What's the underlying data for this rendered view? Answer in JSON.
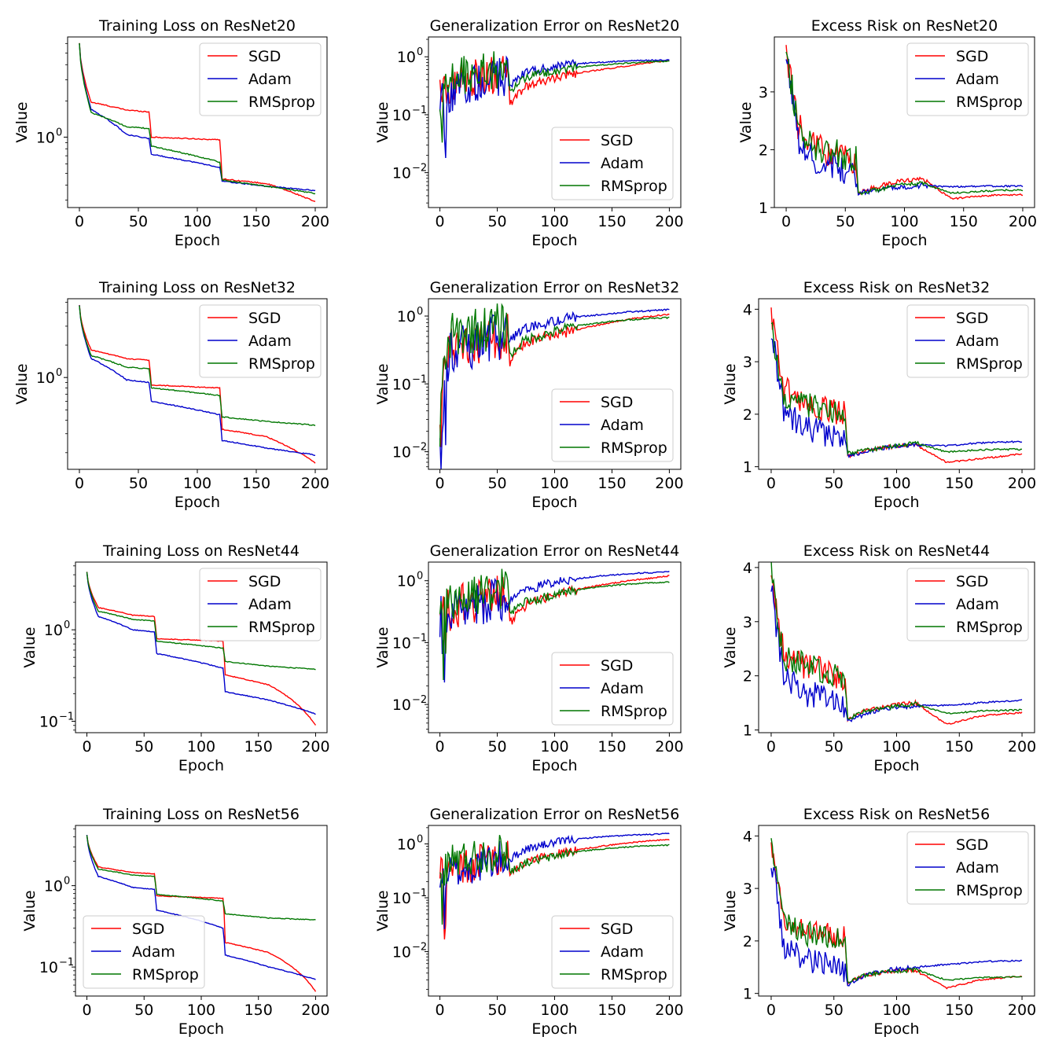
{
  "figure": {
    "rows": [
      "ResNet20",
      "ResNet32",
      "ResNet44",
      "ResNet56"
    ],
    "columns": [
      "Training Loss",
      "Generalization Error",
      "Excess Risk"
    ],
    "colors": {
      "SGD": "#ff0000",
      "Adam": "#0000cc",
      "RMSprop": "#007700"
    }
  },
  "chart_data": [
    {
      "type": "line",
      "model": "ResNet20",
      "metric": "loss",
      "title": "Training Loss on ResNet20",
      "xlabel": "Epoch",
      "ylabel": "Value",
      "yscale": "log",
      "ylim": [
        0.26,
        6.8
      ],
      "xlim": [
        -10,
        210
      ],
      "xticks": [
        0,
        50,
        100,
        150,
        200
      ],
      "yticks": [
        {
          "v": 1,
          "label": "10",
          "exp": "0"
        }
      ],
      "legend": "upper right",
      "series": [
        {
          "name": "SGD",
          "values": [
            6.0,
            1.95,
            1.68,
            1.62,
            1.0,
            0.95,
            0.45,
            0.41,
            0.29
          ]
        },
        {
          "name": "Adam",
          "values": [
            6.0,
            1.7,
            1.05,
            0.97,
            0.72,
            0.56,
            0.43,
            0.39,
            0.36
          ]
        },
        {
          "name": "RMSprop",
          "values": [
            6.0,
            1.6,
            1.22,
            1.18,
            0.84,
            0.62,
            0.44,
            0.39,
            0.34
          ]
        }
      ]
    },
    {
      "type": "line",
      "model": "ResNet20",
      "metric": "gen",
      "title": "Generalization Error on ResNet20",
      "xlabel": "Epoch",
      "ylabel": "Value",
      "yscale": "log",
      "ylim": [
        0.0025,
        2.2
      ],
      "xlim": [
        -10,
        210
      ],
      "xticks": [
        0,
        50,
        100,
        150,
        200
      ],
      "yticks": [
        {
          "v": 1,
          "label": "10",
          "exp": "0"
        },
        {
          "v": 0.1,
          "label": "10",
          "exp": "−1"
        },
        {
          "v": 0.01,
          "label": "10",
          "exp": "−2"
        }
      ],
      "legend": "lower right",
      "series": [
        {
          "name": "SGD",
          "values": [
            0.25,
            0.35,
            0.4,
            0.45,
            0.5,
            0.5,
            0.15,
            0.3,
            0.4,
            0.5,
            0.6,
            0.7,
            0.8,
            0.85
          ]
        },
        {
          "name": "Adam",
          "values": [
            0.2,
            0.2,
            0.3,
            0.4,
            0.45,
            0.45,
            0.3,
            0.55,
            0.65,
            0.75,
            0.8,
            0.85,
            0.87,
            0.88
          ]
        },
        {
          "name": "RMSprop",
          "values": [
            0.25,
            0.45,
            0.5,
            0.6,
            0.6,
            0.6,
            0.25,
            0.45,
            0.55,
            0.65,
            0.72,
            0.78,
            0.82,
            0.84
          ]
        }
      ]
    },
    {
      "type": "line",
      "model": "ResNet20",
      "metric": "risk",
      "title": "Excess Risk on ResNet20",
      "xlabel": "Epoch",
      "ylabel": "Value",
      "yscale": "linear",
      "ylim": [
        1.0,
        3.95
      ],
      "xlim": [
        -10,
        210
      ],
      "xticks": [
        0,
        50,
        100,
        150,
        200
      ],
      "yticks": [
        {
          "v": 1,
          "label": "1"
        },
        {
          "v": 2,
          "label": "2"
        },
        {
          "v": 3,
          "label": "3"
        }
      ],
      "legend": "upper right",
      "series": [
        {
          "name": "SGD",
          "values": [
            3.7,
            2.4,
            2.1,
            1.9,
            1.85,
            1.75,
            1.25,
            1.35,
            1.45,
            1.5,
            1.15,
            1.2,
            1.22,
            1.22
          ]
        },
        {
          "name": "Adam",
          "values": [
            3.7,
            2.2,
            1.8,
            1.7,
            1.6,
            1.55,
            1.25,
            1.3,
            1.35,
            1.38,
            1.36,
            1.37,
            1.37,
            1.37
          ]
        },
        {
          "name": "RMSprop",
          "values": [
            3.8,
            2.3,
            2.0,
            1.95,
            1.9,
            1.85,
            1.25,
            1.3,
            1.38,
            1.42,
            1.25,
            1.28,
            1.3,
            1.3
          ]
        }
      ]
    },
    {
      "type": "line",
      "model": "ResNet32",
      "metric": "loss",
      "title": "Training Loss on ResNet32",
      "xlabel": "Epoch",
      "ylabel": "Value",
      "yscale": "log",
      "ylim": [
        0.14,
        5.4
      ],
      "xlim": [
        -10,
        210
      ],
      "xticks": [
        0,
        50,
        100,
        150,
        200
      ],
      "yticks": [
        {
          "v": 1,
          "label": "10",
          "exp": "0"
        }
      ],
      "legend": "upper right",
      "series": [
        {
          "name": "SGD",
          "values": [
            4.7,
            1.8,
            1.5,
            1.45,
            0.85,
            0.8,
            0.33,
            0.28,
            0.16
          ]
        },
        {
          "name": "Adam",
          "values": [
            4.7,
            1.5,
            0.95,
            0.9,
            0.6,
            0.45,
            0.26,
            0.22,
            0.19
          ]
        },
        {
          "name": "RMSprop",
          "values": [
            4.7,
            1.6,
            1.25,
            1.2,
            0.8,
            0.68,
            0.43,
            0.39,
            0.36
          ]
        }
      ]
    },
    {
      "type": "line",
      "model": "ResNet32",
      "metric": "gen",
      "title": "Generalization Error on ResNet32",
      "xlabel": "Epoch",
      "ylabel": "Value",
      "yscale": "log",
      "ylim": [
        0.0055,
        1.8
      ],
      "xlim": [
        -10,
        210
      ],
      "xticks": [
        0,
        50,
        100,
        150,
        200
      ],
      "yticks": [
        {
          "v": 1,
          "label": "10",
          "exp": "0"
        },
        {
          "v": 0.1,
          "label": "10",
          "exp": "−1"
        },
        {
          "v": 0.01,
          "label": "10",
          "exp": "−2"
        }
      ],
      "legend": "lower right",
      "series": [
        {
          "name": "SGD",
          "values": [
            0.02,
            0.35,
            0.4,
            0.45,
            0.5,
            0.5,
            0.2,
            0.4,
            0.5,
            0.6,
            0.75,
            0.9,
            1.0,
            1.05
          ]
        },
        {
          "name": "Adam",
          "values": [
            0.02,
            0.3,
            0.35,
            0.45,
            0.5,
            0.5,
            0.45,
            0.65,
            0.8,
            0.95,
            1.05,
            1.15,
            1.2,
            1.25
          ]
        },
        {
          "name": "RMSprop",
          "values": [
            0.02,
            0.5,
            0.6,
            0.65,
            0.7,
            0.7,
            0.25,
            0.45,
            0.55,
            0.7,
            0.8,
            0.88,
            0.93,
            0.95
          ]
        }
      ]
    },
    {
      "type": "line",
      "model": "ResNet32",
      "metric": "risk",
      "title": "Excess Risk on ResNet32",
      "xlabel": "Epoch",
      "ylabel": "Value",
      "yscale": "linear",
      "ylim": [
        0.95,
        4.2
      ],
      "xlim": [
        -10,
        210
      ],
      "xticks": [
        0,
        50,
        100,
        150,
        200
      ],
      "yticks": [
        {
          "v": 1,
          "label": "1"
        },
        {
          "v": 2,
          "label": "2"
        },
        {
          "v": 3,
          "label": "3"
        },
        {
          "v": 4,
          "label": "4"
        }
      ],
      "legend": "upper right",
      "series": [
        {
          "name": "SGD",
          "values": [
            4.0,
            2.5,
            2.2,
            2.1,
            2.05,
            2.0,
            1.2,
            1.3,
            1.38,
            1.42,
            1.08,
            1.15,
            1.2,
            1.25
          ]
        },
        {
          "name": "Adam",
          "values": [
            3.6,
            2.1,
            1.75,
            1.65,
            1.6,
            1.55,
            1.2,
            1.3,
            1.38,
            1.42,
            1.4,
            1.45,
            1.47,
            1.48
          ]
        },
        {
          "name": "RMSprop",
          "values": [
            3.7,
            2.4,
            2.2,
            2.1,
            2.0,
            1.9,
            1.25,
            1.32,
            1.38,
            1.45,
            1.28,
            1.32,
            1.33,
            1.33
          ]
        }
      ]
    },
    {
      "type": "line",
      "model": "ResNet44",
      "metric": "loss",
      "title": "Training Loss on ResNet44",
      "xlabel": "Epoch",
      "ylabel": "Value",
      "yscale": "log",
      "ylim": [
        0.075,
        5.5
      ],
      "xlim": [
        -10,
        210
      ],
      "xticks": [
        0,
        50,
        100,
        150,
        200
      ],
      "yticks": [
        {
          "v": 1,
          "label": "10",
          "exp": "0"
        },
        {
          "v": 0.1,
          "label": "10",
          "exp": "−1"
        }
      ],
      "legend": "upper right",
      "series": [
        {
          "name": "SGD",
          "values": [
            4.3,
            1.75,
            1.45,
            1.4,
            0.8,
            0.75,
            0.32,
            0.25,
            0.09
          ]
        },
        {
          "name": "Adam",
          "values": [
            4.3,
            1.4,
            1.0,
            0.95,
            0.55,
            0.38,
            0.21,
            0.17,
            0.12
          ]
        },
        {
          "name": "RMSprop",
          "values": [
            4.3,
            1.6,
            1.3,
            1.25,
            0.75,
            0.63,
            0.45,
            0.4,
            0.37
          ]
        }
      ]
    },
    {
      "type": "line",
      "model": "ResNet44",
      "metric": "gen",
      "title": "Generalization Error on ResNet44",
      "xlabel": "Epoch",
      "ylabel": "Value",
      "yscale": "log",
      "ylim": [
        0.0035,
        2.0
      ],
      "xlim": [
        -10,
        210
      ],
      "xticks": [
        0,
        50,
        100,
        150,
        200
      ],
      "yticks": [
        {
          "v": 1,
          "label": "10",
          "exp": "0"
        },
        {
          "v": 0.1,
          "label": "10",
          "exp": "−1"
        },
        {
          "v": 0.01,
          "label": "10",
          "exp": "−2"
        }
      ],
      "legend": "lower right",
      "series": [
        {
          "name": "SGD",
          "values": [
            0.3,
            0.35,
            0.45,
            0.5,
            0.55,
            0.55,
            0.2,
            0.4,
            0.55,
            0.7,
            0.85,
            1.0,
            1.1,
            1.2
          ]
        },
        {
          "name": "Adam",
          "values": [
            0.25,
            0.3,
            0.35,
            0.45,
            0.5,
            0.5,
            0.45,
            0.7,
            0.9,
            1.05,
            1.2,
            1.3,
            1.35,
            1.4
          ]
        },
        {
          "name": "RMSprop",
          "values": [
            0.25,
            0.5,
            0.55,
            0.65,
            0.7,
            0.7,
            0.3,
            0.45,
            0.55,
            0.7,
            0.8,
            0.88,
            0.93,
            0.95
          ]
        }
      ]
    },
    {
      "type": "line",
      "model": "ResNet44",
      "metric": "risk",
      "title": "Excess Risk on ResNet44",
      "xlabel": "Epoch",
      "ylabel": "Value",
      "yscale": "linear",
      "ylim": [
        0.95,
        4.1
      ],
      "xlim": [
        -10,
        210
      ],
      "xticks": [
        0,
        50,
        100,
        150,
        200
      ],
      "yticks": [
        {
          "v": 1,
          "label": "1"
        },
        {
          "v": 2,
          "label": "2"
        },
        {
          "v": 3,
          "label": "3"
        },
        {
          "v": 4,
          "label": "4"
        }
      ],
      "legend": "upper right",
      "series": [
        {
          "name": "SGD",
          "values": [
            3.9,
            2.4,
            2.2,
            2.1,
            2.0,
            1.95,
            1.2,
            1.35,
            1.45,
            1.5,
            1.1,
            1.25,
            1.3,
            1.32
          ]
        },
        {
          "name": "Adam",
          "values": [
            3.6,
            2.0,
            1.7,
            1.6,
            1.5,
            1.45,
            1.15,
            1.3,
            1.4,
            1.45,
            1.45,
            1.5,
            1.53,
            1.55
          ]
        },
        {
          "name": "RMSprop",
          "values": [
            3.9,
            2.3,
            2.2,
            2.1,
            2.05,
            2.0,
            1.2,
            1.35,
            1.42,
            1.48,
            1.3,
            1.35,
            1.36,
            1.37
          ]
        }
      ]
    },
    {
      "type": "line",
      "model": "ResNet56",
      "metric": "loss",
      "title": "Training Loss on ResNet56",
      "xlabel": "Epoch",
      "ylabel": "Value",
      "yscale": "log",
      "ylim": [
        0.044,
        5.5
      ],
      "xlim": [
        -10,
        210
      ],
      "xticks": [
        0,
        50,
        100,
        150,
        200
      ],
      "yticks": [
        {
          "v": 1,
          "label": "10",
          "exp": "0"
        },
        {
          "v": 0.1,
          "label": "10",
          "exp": "−1"
        }
      ],
      "legend": "lower left",
      "series": [
        {
          "name": "SGD",
          "values": [
            4.2,
            1.7,
            1.45,
            1.4,
            0.75,
            0.7,
            0.2,
            0.15,
            0.05
          ]
        },
        {
          "name": "Adam",
          "values": [
            4.2,
            1.3,
            0.95,
            0.9,
            0.5,
            0.3,
            0.14,
            0.1,
            0.07
          ]
        },
        {
          "name": "RMSprop",
          "values": [
            4.2,
            1.6,
            1.35,
            1.3,
            0.78,
            0.65,
            0.45,
            0.4,
            0.38
          ]
        }
      ]
    },
    {
      "type": "line",
      "model": "ResNet56",
      "metric": "gen",
      "title": "Generalization Error on ResNet56",
      "xlabel": "Epoch",
      "ylabel": "Value",
      "yscale": "log",
      "ylim": [
        0.0015,
        2.2
      ],
      "xlim": [
        -10,
        210
      ],
      "xticks": [
        0,
        50,
        100,
        150,
        200
      ],
      "yticks": [
        {
          "v": 1,
          "label": "10",
          "exp": "0"
        },
        {
          "v": 0.1,
          "label": "10",
          "exp": "−1"
        },
        {
          "v": 0.01,
          "label": "10",
          "exp": "−2"
        }
      ],
      "legend": "lower right",
      "series": [
        {
          "name": "SGD",
          "values": [
            0.3,
            0.35,
            0.4,
            0.5,
            0.55,
            0.55,
            0.25,
            0.45,
            0.6,
            0.75,
            0.9,
            1.05,
            1.15,
            1.2
          ]
        },
        {
          "name": "Adam",
          "values": [
            0.25,
            0.3,
            0.35,
            0.45,
            0.5,
            0.55,
            0.5,
            0.8,
            1.0,
            1.2,
            1.35,
            1.45,
            1.5,
            1.55
          ]
        },
        {
          "name": "RMSprop",
          "values": [
            0.2,
            0.5,
            0.55,
            0.65,
            0.7,
            0.7,
            0.3,
            0.45,
            0.55,
            0.7,
            0.8,
            0.88,
            0.93,
            0.95
          ]
        }
      ]
    },
    {
      "type": "line",
      "model": "ResNet56",
      "metric": "risk",
      "title": "Excess Risk on ResNet56",
      "xlabel": "Epoch",
      "ylabel": "Value",
      "yscale": "linear",
      "ylim": [
        0.95,
        4.2
      ],
      "xlim": [
        -10,
        210
      ],
      "xticks": [
        0,
        50,
        100,
        150,
        200
      ],
      "yticks": [
        {
          "v": 1,
          "label": "1"
        },
        {
          "v": 2,
          "label": "2"
        },
        {
          "v": 3,
          "label": "3"
        },
        {
          "v": 4,
          "label": "4"
        }
      ],
      "legend": "upper right",
      "series": [
        {
          "name": "SGD",
          "values": [
            4.0,
            2.3,
            2.2,
            2.1,
            2.1,
            2.05,
            1.2,
            1.35,
            1.42,
            1.45,
            1.1,
            1.25,
            1.3,
            1.33
          ]
        },
        {
          "name": "Adam",
          "values": [
            3.6,
            1.9,
            1.65,
            1.6,
            1.5,
            1.45,
            1.15,
            1.35,
            1.45,
            1.5,
            1.55,
            1.6,
            1.62,
            1.62
          ]
        },
        {
          "name": "RMSprop",
          "values": [
            4.0,
            2.3,
            2.15,
            2.1,
            2.05,
            2.0,
            1.2,
            1.35,
            1.42,
            1.45,
            1.25,
            1.3,
            1.31,
            1.32
          ]
        }
      ]
    }
  ]
}
